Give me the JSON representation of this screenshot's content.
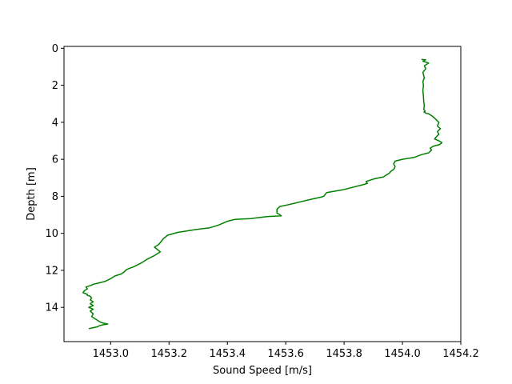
{
  "chart_data": {
    "type": "line",
    "title": "",
    "xlabel": "Sound Speed [m/s]",
    "ylabel": "Depth [m]",
    "xlim": [
      1452.84,
      1454.2
    ],
    "ylim": [
      15.85,
      -0.1
    ],
    "y_inverted": true,
    "grid": false,
    "legend": "none",
    "x_ticks": [
      {
        "value": 1453.0,
        "label": "1453.0"
      },
      {
        "value": 1453.2,
        "label": "1453.2"
      },
      {
        "value": 1453.4,
        "label": "1453.4"
      },
      {
        "value": 1453.6,
        "label": "1453.6"
      },
      {
        "value": 1453.8,
        "label": "1453.8"
      },
      {
        "value": 1454.0,
        "label": "1454.0"
      },
      {
        "value": 1454.2,
        "label": "1454.2"
      }
    ],
    "y_ticks": [
      {
        "value": 0,
        "label": "0"
      },
      {
        "value": 2,
        "label": "2"
      },
      {
        "value": 4,
        "label": "4"
      },
      {
        "value": 6,
        "label": "6"
      },
      {
        "value": 8,
        "label": "8"
      },
      {
        "value": 10,
        "label": "10"
      },
      {
        "value": 12,
        "label": "12"
      },
      {
        "value": 14,
        "label": "14"
      }
    ],
    "series": [
      {
        "color": "#008000",
        "x": [
          1454.065,
          1454.08,
          1454.07,
          1454.09,
          1454.075,
          1454.08,
          1454.07,
          1454.075,
          1454.07,
          1454.072,
          1454.07,
          1454.072,
          1454.073,
          1454.075,
          1454.073,
          1454.078,
          1454.074,
          1454.08,
          1454.09,
          1454.105,
          1454.115,
          1454.125,
          1454.12,
          1454.13,
          1454.12,
          1454.125,
          1454.115,
          1454.11,
          1454.125,
          1454.135,
          1454.128,
          1454.105,
          1454.095,
          1454.1,
          1454.09,
          1454.065,
          1454.04,
          1454.0,
          1453.975,
          1453.97,
          1453.975,
          1453.97,
          1453.96,
          1453.955,
          1453.945,
          1453.935,
          1453.905,
          1453.885,
          1453.875,
          1453.88,
          1453.87,
          1453.795,
          1453.74,
          1453.73,
          1453.72,
          1453.69,
          1453.65,
          1453.61,
          1453.58,
          1453.57,
          1453.57,
          1453.585,
          1453.535,
          1453.48,
          1453.425,
          1453.4,
          1453.385,
          1453.37,
          1453.34,
          1453.29,
          1453.23,
          1453.195,
          1453.18,
          1453.165,
          1453.15,
          1453.17,
          1453.15,
          1453.125,
          1453.105,
          1453.08,
          1453.055,
          1453.045,
          1453.035,
          1453.015,
          1453.0,
          1452.98,
          1452.955,
          1452.94,
          1452.935,
          1452.925,
          1452.915,
          1452.92,
          1452.91,
          1452.905,
          1452.92,
          1452.92,
          1452.93,
          1452.935,
          1452.93,
          1452.94,
          1452.93,
          1452.94,
          1452.925,
          1452.94,
          1452.93,
          1452.94,
          1452.935,
          1452.945,
          1452.955,
          1452.965,
          1452.975,
          1452.99,
          1452.97,
          1452.96,
          1452.955,
          1452.94,
          1452.925
        ],
        "y": [
          0.6,
          0.62,
          0.7,
          0.8,
          0.95,
          1.1,
          1.3,
          1.6,
          1.8,
          2.0,
          2.3,
          2.6,
          2.9,
          3.1,
          3.3,
          3.4,
          3.45,
          3.5,
          3.55,
          3.7,
          3.85,
          4.0,
          4.2,
          4.35,
          4.5,
          4.65,
          4.8,
          4.9,
          5.0,
          5.1,
          5.2,
          5.3,
          5.4,
          5.5,
          5.65,
          5.75,
          5.9,
          6.0,
          6.1,
          6.25,
          6.4,
          6.55,
          6.65,
          6.75,
          6.85,
          6.95,
          7.05,
          7.15,
          7.2,
          7.3,
          7.35,
          7.65,
          7.8,
          8.0,
          8.05,
          8.15,
          8.3,
          8.45,
          8.55,
          8.7,
          8.9,
          9.05,
          9.1,
          9.2,
          9.25,
          9.35,
          9.45,
          9.55,
          9.7,
          9.8,
          9.95,
          10.1,
          10.3,
          10.6,
          10.75,
          11.0,
          11.2,
          11.4,
          11.6,
          11.8,
          11.95,
          12.1,
          12.2,
          12.3,
          12.45,
          12.6,
          12.7,
          12.75,
          12.8,
          12.85,
          12.9,
          13.0,
          13.1,
          13.2,
          13.3,
          13.35,
          13.4,
          13.5,
          13.6,
          13.7,
          13.8,
          13.9,
          14.0,
          14.1,
          14.2,
          14.35,
          14.5,
          14.6,
          14.7,
          14.8,
          14.85,
          14.9,
          14.95,
          15.0,
          15.05,
          15.1,
          15.15
        ]
      }
    ]
  }
}
